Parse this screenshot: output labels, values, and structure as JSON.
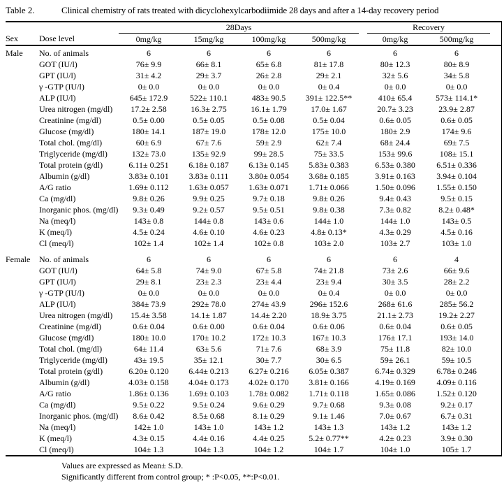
{
  "title": {
    "label": "Table 2.",
    "text": "Clinical chemistry of rats treated with dicyclohexylcarbodiimide 28 days and after a 14-day recovery period"
  },
  "header": {
    "sex": "Sex",
    "dose_level": "Dose level",
    "groups": [
      {
        "label": "28Days",
        "columns": [
          "0mg/kg",
          "15mg/kg",
          "100mg/kg",
          "500mg/kg"
        ]
      },
      {
        "label": "Recovery",
        "columns": [
          "0mg/kg",
          "500mg/kg"
        ]
      }
    ]
  },
  "sections": [
    {
      "sex": "Male",
      "rows": [
        {
          "param": "No. of animals",
          "values": [
            "6",
            "6",
            "6",
            "6",
            "6",
            "6"
          ]
        },
        {
          "param": "GOT (IU/l)",
          "values": [
            "76± 9.9",
            "66± 8.1",
            "65± 6.8",
            "81± 17.8",
            "80± 12.3",
            "80± 8.9"
          ]
        },
        {
          "param": "GPT (IU/l)",
          "values": [
            "31± 4.2",
            "29± 3.7",
            "26± 2.8",
            "29± 2.1",
            "32± 5.6",
            "34± 5.8"
          ]
        },
        {
          "param": "γ -GTP (IU/l)",
          "values": [
            "0± 0.0",
            "0± 0.0",
            "0± 0.0",
            "0± 0.4",
            "0± 0.0",
            "0± 0.0"
          ]
        },
        {
          "param": "ALP (IU/l)",
          "values": [
            "645± 172.9",
            "522± 110.1",
            "483± 90.5",
            "391± 122.5**",
            "410± 65.4",
            "573± 114.1*"
          ]
        },
        {
          "param": "Urea nitrogen (mg/dl)",
          "values": [
            "17.2± 2.58",
            "16.3± 2.75",
            "16.1± 1.79",
            "17.0± 1.67",
            "20.7± 3.23",
            "23.9± 2.87"
          ]
        },
        {
          "param": "Creatinine (mg/dl)",
          "values": [
            "0.5± 0.00",
            "0.5± 0.05",
            "0.5± 0.08",
            "0.5± 0.04",
            "0.6± 0.05",
            "0.6± 0.05"
          ]
        },
        {
          "param": "Glucose (mg/dl)",
          "values": [
            "180± 14.1",
            "187± 19.0",
            "178± 12.0",
            "175± 10.0",
            "180± 2.9",
            "174± 9.6"
          ]
        },
        {
          "param": "Total chol. (mg/dl)",
          "values": [
            "60± 6.9",
            "67± 7.6",
            "59± 2.9",
            "62± 7.4",
            "68± 24.4",
            "69± 7.5"
          ]
        },
        {
          "param": "Triglyceride (mg/dl)",
          "values": [
            "132± 73.0",
            "135± 92.9",
            "99± 28.5",
            "75± 33.5",
            "153± 99.6",
            "108± 15.1"
          ]
        },
        {
          "param": "Total protein (g/dl)",
          "values": [
            "6.11± 0.251",
            "6.18± 0.187",
            "6.13± 0.145",
            "5.83± 0.383",
            "6.53± 0.380",
            "6.51± 0.336"
          ]
        },
        {
          "param": "Albumin (g/dl)",
          "values": [
            "3.83± 0.101",
            "3.83± 0.111",
            "3.80± 0.054",
            "3.68± 0.185",
            "3.91± 0.163",
            "3.94± 0.104"
          ]
        },
        {
          "param": "A/G ratio",
          "values": [
            "1.69± 0.112",
            "1.63± 0.057",
            "1.63± 0.071",
            "1.71± 0.066",
            "1.50± 0.096",
            "1.55± 0.150"
          ]
        },
        {
          "param": "Ca (mg/dl)",
          "values": [
            "9.8± 0.26",
            "9.9± 0.25",
            "9.7± 0.18",
            "9.8± 0.26",
            "9.4± 0.43",
            "9.5± 0.15"
          ]
        },
        {
          "param": "Inorganic phos. (mg/dl)",
          "values": [
            "9.3± 0.49",
            "9.2± 0.57",
            "9.5± 0.51",
            "9.8± 0.38",
            "7.3± 0.82",
            "8.2± 0.48*"
          ]
        },
        {
          "param": "Na (meq/l)",
          "values": [
            "143± 0.8",
            "144± 0.8",
            "143± 0.6",
            "144± 1.0",
            "144± 1.0",
            "143± 0.5"
          ]
        },
        {
          "param": "K (meq/l)",
          "values": [
            "4.5± 0.24",
            "4.6± 0.10",
            "4.6± 0.23",
            "4.8± 0.13*",
            "4.3± 0.29",
            "4.5± 0.16"
          ]
        },
        {
          "param": "Cl (meq/l)",
          "values": [
            "102± 1.4",
            "102± 1.4",
            "102± 0.8",
            "103± 2.0",
            "103± 2.7",
            "103± 1.0"
          ]
        }
      ]
    },
    {
      "sex": "Female",
      "rows": [
        {
          "param": "No. of animals",
          "values": [
            "6",
            "6",
            "6",
            "6",
            "6",
            "4"
          ]
        },
        {
          "param": "GOT (IU/l)",
          "values": [
            "64± 5.8",
            "74± 9.0",
            "67± 5.8",
            "74± 21.8",
            "73± 2.6",
            "66± 9.6"
          ]
        },
        {
          "param": "GPT (IU/l)",
          "values": [
            "29± 8.1",
            "23± 2.3",
            "23± 4.4",
            "23± 9.4",
            "30± 3.5",
            "28± 2.2"
          ]
        },
        {
          "param": "γ -GTP (IU/l)",
          "values": [
            "0± 0.0",
            "0± 0.0",
            "0± 0.0",
            "0± 0.4",
            "0± 0.0",
            "0± 0.0"
          ]
        },
        {
          "param": "ALP (IU/l)",
          "values": [
            "384± 73.9",
            "292± 78.0",
            "274± 43.9",
            "296± 152.6",
            "268± 61.6",
            "285± 56.2"
          ]
        },
        {
          "param": "Urea nitrogen (mg/dl)",
          "values": [
            "15.4± 3.58",
            "14.1± 1.87",
            "14.4± 2.20",
            "18.9± 3.75",
            "21.1± 2.73",
            "19.2± 2.27"
          ]
        },
        {
          "param": "Creatinine (mg/dl)",
          "values": [
            "0.6± 0.04",
            "0.6± 0.00",
            "0.6± 0.04",
            "0.6± 0.06",
            "0.6± 0.04",
            "0.6± 0.05"
          ]
        },
        {
          "param": "Glucose (mg/dl)",
          "values": [
            "180± 10.0",
            "170± 10.2",
            "172± 10.3",
            "167± 10.3",
            "176± 17.1",
            "193± 14.0"
          ]
        },
        {
          "param": "Total chol. (mg/dl)",
          "values": [
            "64± 11.4",
            "63± 5.6",
            "71± 7.6",
            "68± 3.9",
            "75± 11.8",
            "82± 10.0"
          ]
        },
        {
          "param": "Triglyceride (mg/dl)",
          "values": [
            "43± 19.5",
            "35± 12.1",
            "30± 7.7",
            "30± 6.5",
            "59± 26.1",
            "59± 10.5"
          ]
        },
        {
          "param": "Total protein (g/dl)",
          "values": [
            "6.20± 0.120",
            "6.44± 0.213",
            "6.27± 0.216",
            "6.05± 0.387",
            "6.74± 0.329",
            "6.78± 0.246"
          ]
        },
        {
          "param": "Albumin (g/dl)",
          "values": [
            "4.03± 0.158",
            "4.04± 0.173",
            "4.02± 0.170",
            "3.81± 0.166",
            "4.19± 0.169",
            "4.09± 0.116"
          ]
        },
        {
          "param": "A/G ratio",
          "values": [
            "1.86± 0.136",
            "1.69± 0.103",
            "1.78± 0.082",
            "1.71± 0.118",
            "1.65± 0.086",
            "1.52± 0.120"
          ]
        },
        {
          "param": "Ca (mg/dl)",
          "values": [
            "9.5± 0.22",
            "9.5± 0.24",
            "9.6± 0.29",
            "9.7± 0.68",
            "9.3± 0.08",
            "9.2± 0.17"
          ]
        },
        {
          "param": "Inorganic phos. (mg/dl)",
          "values": [
            "8.6± 0.42",
            "8.5± 0.68",
            "8.1± 0.29",
            "9.1± 1.46",
            "7.0± 0.67",
            "6.7± 0.31"
          ]
        },
        {
          "param": "Na (meq/l)",
          "values": [
            "142± 1.0",
            "143± 1.0",
            "143± 1.2",
            "143± 1.3",
            "143± 1.2",
            "143± 1.2"
          ]
        },
        {
          "param": "K (meq/l)",
          "values": [
            "4.3± 0.15",
            "4.4± 0.16",
            "4.4± 0.25",
            "5.2± 0.77**",
            "4.2± 0.23",
            "3.9± 0.30"
          ]
        },
        {
          "param": "Cl (meq/l)",
          "values": [
            "104± 1.3",
            "104± 1.3",
            "104± 1.2",
            "104± 1.7",
            "104± 1.0",
            "105± 1.7"
          ]
        }
      ]
    }
  ],
  "footnotes": [
    "Values are expressed as Mean± S.D.",
    "Significantly different from control group; * :P<0.05, **:P<0.01."
  ]
}
